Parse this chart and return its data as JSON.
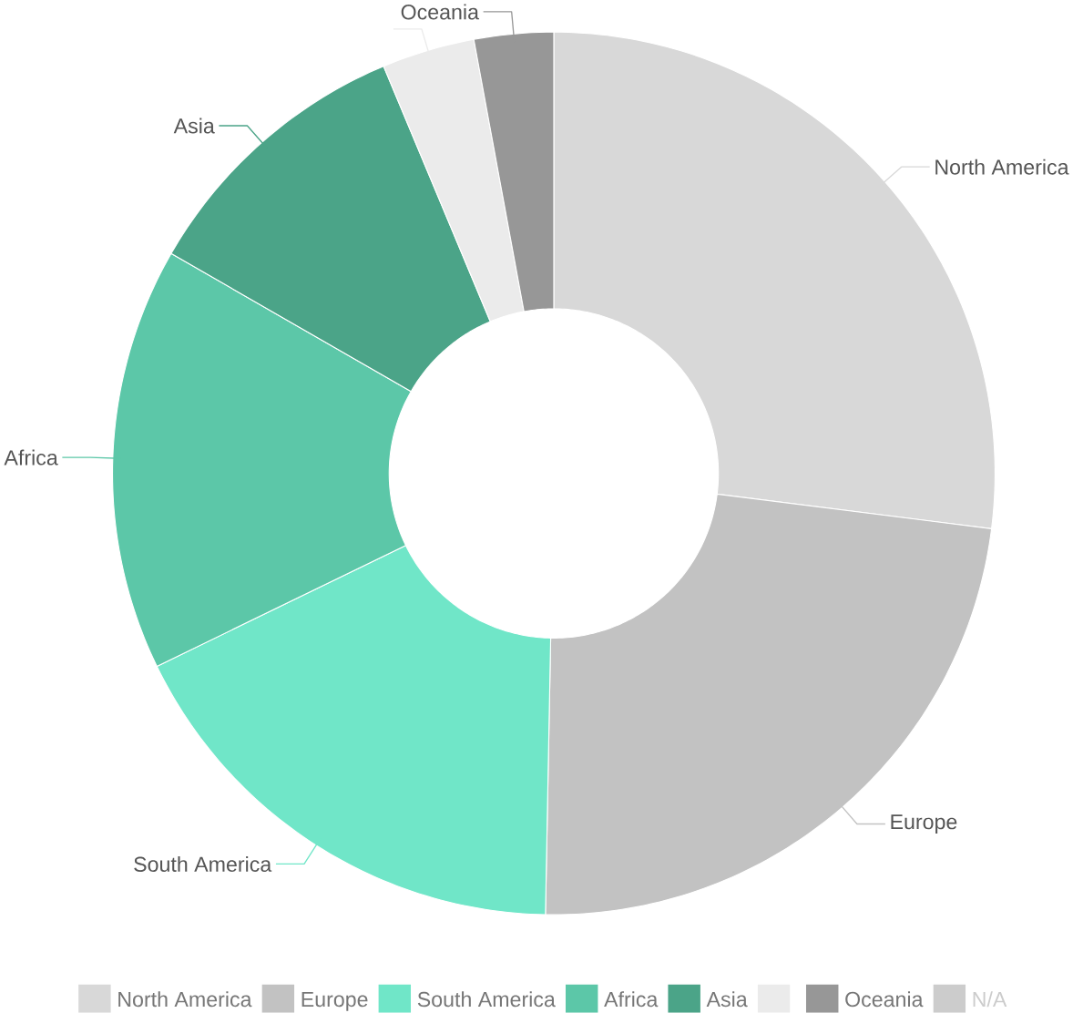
{
  "chart_data": {
    "type": "donut",
    "categories": [
      "North America",
      "Europe",
      "South America",
      "Africa",
      "Asia",
      null,
      "Oceania",
      "N/A"
    ],
    "values": [
      27.0,
      23.3,
      17.5,
      15.5,
      10.4,
      3.4,
      2.9,
      null
    ],
    "colors": [
      "#d8d8d8",
      "#c2c2c2",
      "#70e6c8",
      "#5cc7a8",
      "#4ba488",
      "#ebebeb",
      "#979797",
      "#cccccc"
    ],
    "legend": "bottom"
  }
}
